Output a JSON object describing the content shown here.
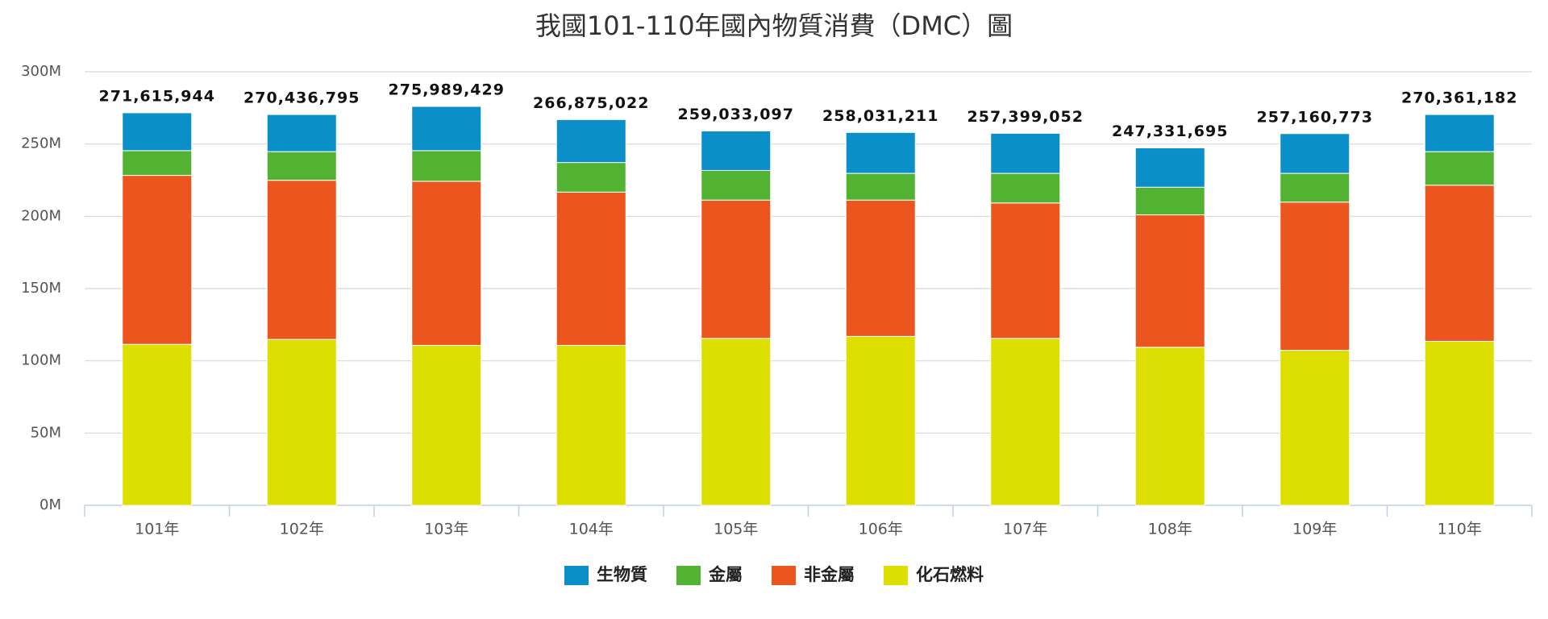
{
  "chart_data": {
    "type": "stacked_bar",
    "title": "我國101-110年國內物質消費（DMC）圖",
    "categories": [
      "101年",
      "102年",
      "103年",
      "104年",
      "105年",
      "106年",
      "107年",
      "108年",
      "109年",
      "110年"
    ],
    "series": [
      {
        "name": "生物質",
        "color": "#0a8fc9",
        "values": [
          26200000,
          25700000,
          30600000,
          29700000,
          27300000,
          28300000,
          27700000,
          27200000,
          27500000,
          25700000
        ]
      },
      {
        "name": "金屬",
        "color": "#52b332",
        "values": [
          17100000,
          19800000,
          21200000,
          20500000,
          20500000,
          18500000,
          20500000,
          19100000,
          19900000,
          23200000
        ]
      },
      {
        "name": "非金屬",
        "color": "#ec561e",
        "values": [
          116900000,
          110100000,
          113500000,
          106000000,
          95700000,
          94300000,
          93700000,
          91600000,
          102500000,
          108000000
        ]
      },
      {
        "name": "化石燃料",
        "color": "#dcdf00",
        "values": [
          111400000,
          114800000,
          110700000,
          110700000,
          115500000,
          116900000,
          115500000,
          109400000,
          107300000,
          113500000
        ]
      }
    ],
    "totals": [
      271615944,
      270436795,
      275989429,
      266875022,
      259033097,
      258031211,
      257399052,
      247331695,
      257160773,
      270361182
    ],
    "total_labels": [
      "271,615,944",
      "270,436,795",
      "275,989,429",
      "266,875,022",
      "259,033,097",
      "258,031,211",
      "257,399,052",
      "247,331,695",
      "257,160,773",
      "270,361,182"
    ],
    "ylim": [
      0,
      300000000
    ],
    "yticks": [
      {
        "value": 0,
        "label": "0M"
      },
      {
        "value": 50000000,
        "label": "50M"
      },
      {
        "value": 100000000,
        "label": "100M"
      },
      {
        "value": 150000000,
        "label": "150M"
      },
      {
        "value": 200000000,
        "label": "200M"
      },
      {
        "value": 250000000,
        "label": "250M"
      },
      {
        "value": 300000000,
        "label": "300M"
      }
    ],
    "grid": true,
    "legend": "bottom"
  }
}
